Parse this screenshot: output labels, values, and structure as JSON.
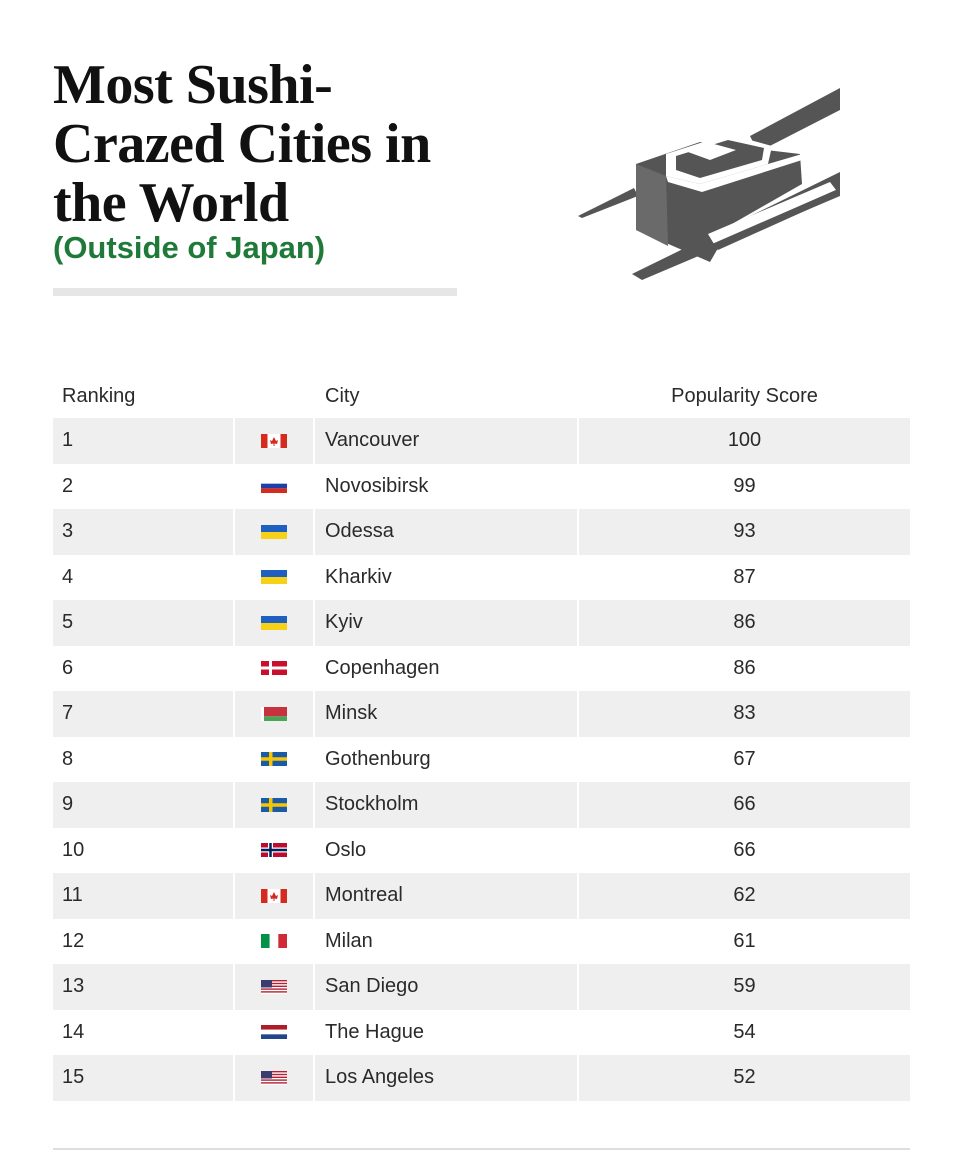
{
  "title": "Most Sushi-Crazed Cities in the World",
  "subtitle": "(Outside of Japan)",
  "colors": {
    "subtitle": "#1f7a3a",
    "row_stripe": "#efefef",
    "icon": "#555555"
  },
  "icon": "sushi-roll-chopsticks-icon",
  "headers": {
    "ranking": "Ranking",
    "city": "City",
    "score": "Popularity Score"
  },
  "rows": [
    {
      "rank": "1",
      "flag": "canada",
      "city": "Vancouver",
      "score": "100"
    },
    {
      "rank": "2",
      "flag": "russia",
      "city": "Novosibirsk",
      "score": "99"
    },
    {
      "rank": "3",
      "flag": "ukraine",
      "city": "Odessa",
      "score": "93"
    },
    {
      "rank": "4",
      "flag": "ukraine",
      "city": "Kharkiv",
      "score": "87"
    },
    {
      "rank": "5",
      "flag": "ukraine",
      "city": "Kyiv",
      "score": "86"
    },
    {
      "rank": "6",
      "flag": "denmark",
      "city": "Copenhagen",
      "score": "86"
    },
    {
      "rank": "7",
      "flag": "belarus",
      "city": "Minsk",
      "score": "83"
    },
    {
      "rank": "8",
      "flag": "sweden",
      "city": "Gothenburg",
      "score": "67"
    },
    {
      "rank": "9",
      "flag": "sweden",
      "city": "Stockholm",
      "score": "66"
    },
    {
      "rank": "10",
      "flag": "norway",
      "city": "Oslo",
      "score": "66"
    },
    {
      "rank": "11",
      "flag": "canada",
      "city": "Montreal",
      "score": "62"
    },
    {
      "rank": "12",
      "flag": "italy",
      "city": "Milan",
      "score": "61"
    },
    {
      "rank": "13",
      "flag": "usa",
      "city": "San Diego",
      "score": "59"
    },
    {
      "rank": "14",
      "flag": "netherlands",
      "city": "The Hague",
      "score": "54"
    },
    {
      "rank": "15",
      "flag": "usa",
      "city": "Los Angeles",
      "score": "52"
    }
  ]
}
